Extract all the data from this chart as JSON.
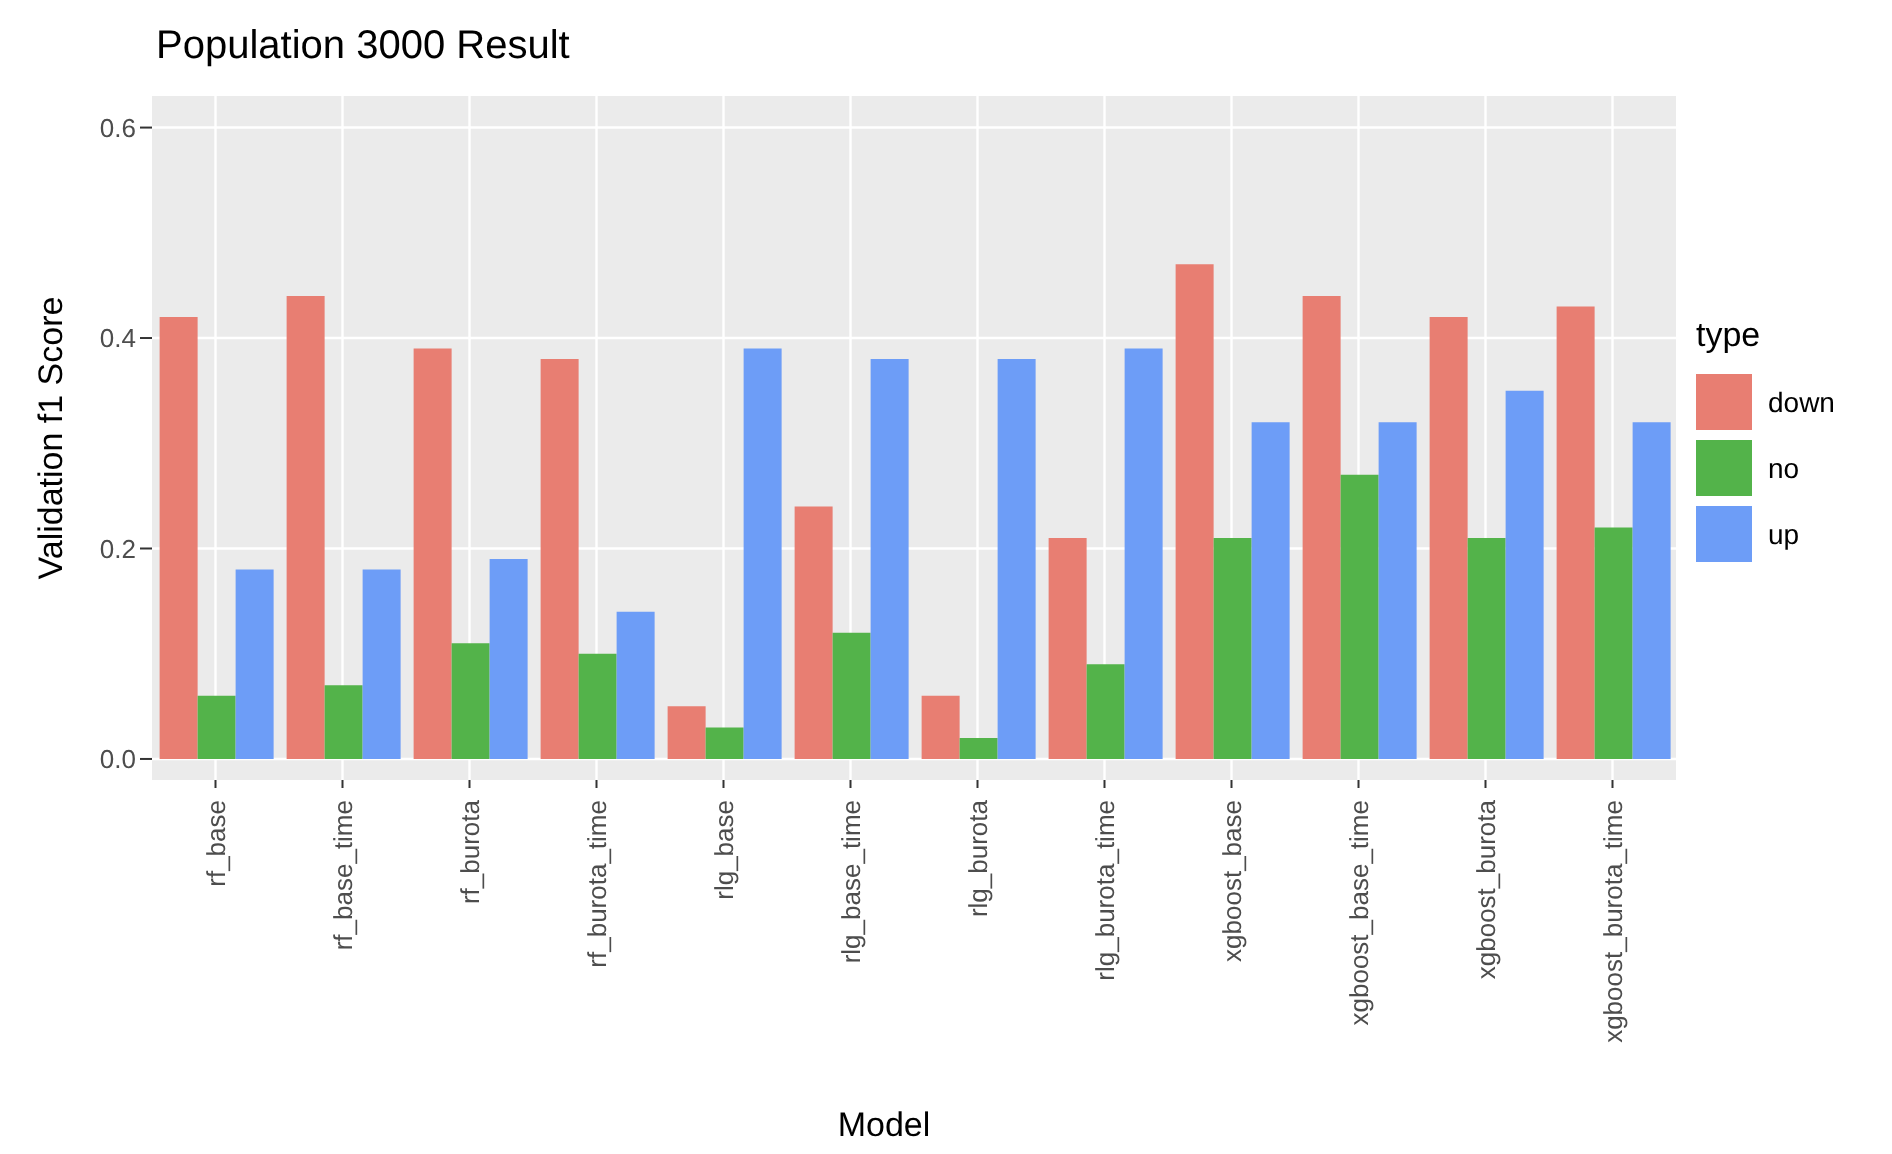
{
  "chart_data": {
    "type": "bar",
    "title": "Population 3000 Result",
    "xlabel": "Model",
    "ylabel": "Validation f1 Score",
    "legend_title": "type",
    "categories": [
      "rf_base",
      "rf_base_time",
      "rf_burota",
      "rf_burota_time",
      "rlg_base",
      "rlg_base_time",
      "rlg_burota",
      "rlg_burota_time",
      "xgboost_base",
      "xgboost_base_time",
      "xgboost_burota",
      "xgboost_burota_time"
    ],
    "series": [
      {
        "name": "down",
        "color": "#e87e72",
        "values": [
          0.42,
          0.44,
          0.39,
          0.38,
          0.05,
          0.24,
          0.06,
          0.21,
          0.47,
          0.44,
          0.42,
          0.43
        ]
      },
      {
        "name": "no",
        "color": "#53b34a",
        "values": [
          0.06,
          0.07,
          0.11,
          0.1,
          0.03,
          0.12,
          0.02,
          0.09,
          0.21,
          0.27,
          0.21,
          0.22
        ]
      },
      {
        "name": "up",
        "color": "#6d9df7",
        "values": [
          0.18,
          0.18,
          0.19,
          0.14,
          0.39,
          0.38,
          0.38,
          0.39,
          0.32,
          0.32,
          0.35,
          0.32
        ]
      }
    ],
    "ylim": [
      -0.02,
      0.63
    ],
    "yticks": [
      {
        "value": 0,
        "label": "0.0"
      },
      {
        "value": 0.2,
        "label": "0.2"
      },
      {
        "value": 0.4,
        "label": "0.4"
      },
      {
        "value": 0.6,
        "label": "0.6"
      }
    ],
    "grid": true,
    "legend": "right"
  }
}
